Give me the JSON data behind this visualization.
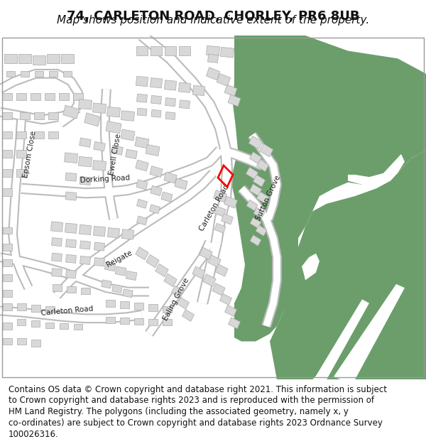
{
  "title": "74, CARLETON ROAD, CHORLEY, PR6 8UB",
  "subtitle": "Map shows position and indicative extent of the property.",
  "footer": "Contains OS data © Crown copyright and database right 2021. This information is subject to Crown copyright and database rights 2023 and is reproduced with the permission of HM Land Registry. The polygons (including the associated geometry, namely x, y co-ordinates) are subject to Crown copyright and database rights 2023 Ordnance Survey 100026316.",
  "background_color": "#ffffff",
  "map_background": "#f5f5f5",
  "green_color": "#6b9e6b",
  "road_color": "#ffffff",
  "road_outline_color": "#cccccc",
  "building_color": "#dcdcdc",
  "building_outline": "#b0b0b0",
  "plot_outline_color": "#ff0000",
  "title_fontsize": 13,
  "subtitle_fontsize": 11,
  "footer_fontsize": 8.5
}
